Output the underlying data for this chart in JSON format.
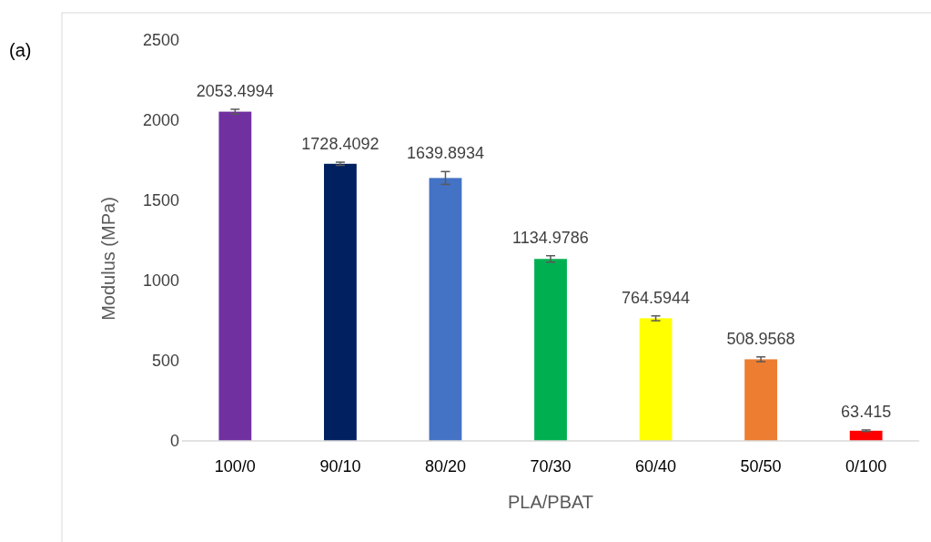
{
  "chart_data": {
    "type": "bar",
    "xlabel": "PLA/PBAT",
    "ylabel": "Modulus (MPa)",
    "annotations": [
      "(a)"
    ],
    "categories": [
      "100/0",
      "90/10",
      "80/20",
      "70/30",
      "60/40",
      "50/50",
      "0/100"
    ],
    "values": [
      2053.4994,
      1728.4092,
      1639.8934,
      1134.9786,
      764.5944,
      508.9568,
      63.415
    ],
    "colors": [
      "#7030a0",
      "#002060",
      "#4472c4",
      "#00b050",
      "#ffff00",
      "#ed7d31",
      "#ff0000"
    ],
    "errors": [
      15,
      10,
      40,
      20,
      15,
      15,
      5
    ],
    "ylim": [
      0,
      2500
    ],
    "yticks": [
      0,
      500,
      1000,
      1500,
      2000,
      2500
    ],
    "data_labels": true,
    "grid": false
  }
}
